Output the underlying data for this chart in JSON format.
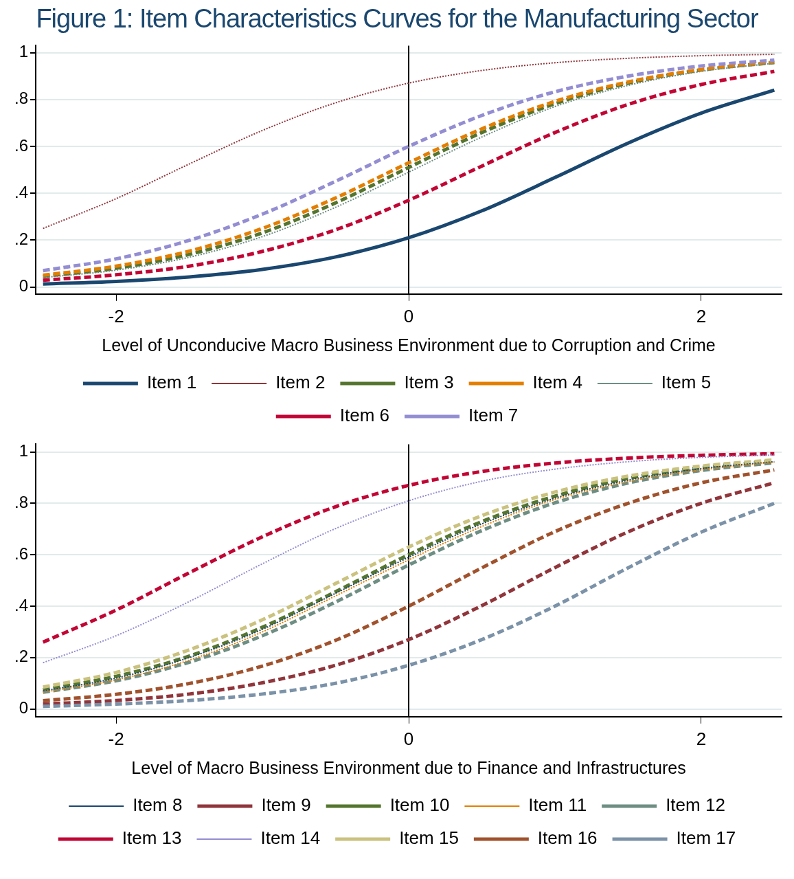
{
  "chart_data": [
    {
      "type": "line",
      "title": "Figure 1: Item Characteristics Curves  for the Manufacturing Sector",
      "xlabel": "Level of Unconducive Macro Business Environment due to Corruption and Crime",
      "x": [
        -2.5,
        -2,
        -1.5,
        -1,
        -0.5,
        0,
        0.5,
        1,
        1.5,
        2,
        2.5
      ],
      "xlim": [
        -2.55,
        2.55
      ],
      "xticks": [
        -2,
        0,
        2
      ],
      "ylim": [
        -0.03,
        1.03
      ],
      "yticks": [
        {
          "value": 0,
          "label": "0"
        },
        {
          "value": 0.2,
          "label": ".2"
        },
        {
          "value": 0.4,
          "label": ".4"
        },
        {
          "value": 0.6,
          "label": ".6"
        },
        {
          "value": 0.8,
          "label": ".8"
        },
        {
          "value": 1,
          "label": "1"
        }
      ],
      "grid": "y",
      "legend": "bottom",
      "marker": "none",
      "ref_lines": [
        {
          "axis": "x",
          "value": 0,
          "color": "#000000"
        }
      ],
      "series": [
        {
          "name": "Item 1",
          "color": "#1a476f",
          "line_style": "solid",
          "values": [
            0.013,
            0.024,
            0.043,
            0.075,
            0.128,
            0.21,
            0.325,
            0.467,
            0.614,
            0.742,
            0.84
          ]
        },
        {
          "name": "Item 2",
          "color": "#90353b",
          "line_style": "dotted",
          "values": [
            0.25,
            0.377,
            0.525,
            0.668,
            0.786,
            0.87,
            0.924,
            0.957,
            0.976,
            0.987,
            0.993
          ]
        },
        {
          "name": "Item 3",
          "color": "#55752f",
          "line_style": "dashed",
          "values": [
            0.045,
            0.08,
            0.139,
            0.231,
            0.359,
            0.51,
            0.659,
            0.782,
            0.87,
            0.926,
            0.958
          ]
        },
        {
          "name": "Item 4",
          "color": "#e37e00",
          "line_style": "dashed",
          "values": [
            0.05,
            0.089,
            0.153,
            0.25,
            0.38,
            0.53,
            0.675,
            0.792,
            0.875,
            0.928,
            0.96
          ]
        },
        {
          "name": "Item 5",
          "color": "#6e8e84",
          "line_style": "dotted",
          "values": [
            0.04,
            0.072,
            0.127,
            0.215,
            0.34,
            0.49,
            0.64,
            0.77,
            0.86,
            0.92,
            0.955
          ]
        },
        {
          "name": "Item 6",
          "color": "#c10534",
          "line_style": "dashed",
          "values": [
            0.029,
            0.052,
            0.089,
            0.152,
            0.244,
            0.37,
            0.516,
            0.659,
            0.779,
            0.864,
            0.92
          ]
        },
        {
          "name": "Item 7",
          "color": "#938dd2",
          "line_style": "dashed",
          "values": [
            0.07,
            0.12,
            0.199,
            0.311,
            0.451,
            0.6,
            0.732,
            0.833,
            0.9,
            0.943,
            0.968
          ]
        }
      ]
    },
    {
      "type": "line",
      "xlabel": "Level of Macro Business Environment due to Finance and Infrastructures",
      "x": [
        -2.5,
        -2,
        -1.5,
        -1,
        -0.5,
        0,
        0.5,
        1,
        1.5,
        2,
        2.5
      ],
      "xlim": [
        -2.55,
        2.55
      ],
      "xticks": [
        -2,
        0,
        2
      ],
      "ylim": [
        -0.03,
        1.03
      ],
      "yticks": [
        {
          "value": 0,
          "label": "0"
        },
        {
          "value": 0.2,
          "label": ".2"
        },
        {
          "value": 0.4,
          "label": ".4"
        },
        {
          "value": 0.6,
          "label": ".6"
        },
        {
          "value": 0.8,
          "label": ".8"
        },
        {
          "value": 1,
          "label": "1"
        }
      ],
      "grid": "y",
      "legend": "bottom",
      "marker": "none",
      "ref_lines": [
        {
          "axis": "x",
          "value": 0,
          "color": "#000000"
        }
      ],
      "series": [
        {
          "name": "Item 8",
          "color": "#1a476f",
          "line_style": "dotted",
          "values": [
            0.07,
            0.12,
            0.2,
            0.31,
            0.45,
            0.59,
            0.72,
            0.82,
            0.89,
            0.935,
            0.962
          ]
        },
        {
          "name": "Item 9",
          "color": "#90353b",
          "line_style": "dashed",
          "values": [
            0.019,
            0.033,
            0.058,
            0.102,
            0.17,
            0.27,
            0.402,
            0.55,
            0.689,
            0.8,
            0.88
          ]
        },
        {
          "name": "Item 10",
          "color": "#55752f",
          "line_style": "dashed",
          "values": [
            0.075,
            0.127,
            0.206,
            0.318,
            0.456,
            0.6,
            0.729,
            0.828,
            0.897,
            0.939,
            0.965
          ]
        },
        {
          "name": "Item 11",
          "color": "#e37e00",
          "line_style": "dotted",
          "values": [
            0.065,
            0.113,
            0.19,
            0.3,
            0.44,
            0.58,
            0.71,
            0.815,
            0.885,
            0.93,
            0.96
          ]
        },
        {
          "name": "Item 12",
          "color": "#6e8e84",
          "line_style": "dashed",
          "values": [
            0.065,
            0.11,
            0.182,
            0.285,
            0.416,
            0.56,
            0.694,
            0.802,
            0.879,
            0.928,
            0.958
          ]
        },
        {
          "name": "Item 13",
          "color": "#c10534",
          "line_style": "dashed",
          "values": [
            0.26,
            0.385,
            0.53,
            0.67,
            0.787,
            0.87,
            0.924,
            0.957,
            0.976,
            0.987,
            0.993
          ]
        },
        {
          "name": "Item 14",
          "color": "#938dd2",
          "line_style": "dotted",
          "values": [
            0.18,
            0.285,
            0.418,
            0.565,
            0.702,
            0.81,
            0.886,
            0.933,
            0.962,
            0.979,
            0.988
          ]
        },
        {
          "name": "Item 15",
          "color": "#cac27e",
          "line_style": "dashed",
          "values": [
            0.085,
            0.142,
            0.23,
            0.347,
            0.488,
            0.63,
            0.752,
            0.844,
            0.906,
            0.945,
            0.969
          ]
        },
        {
          "name": "Item 16",
          "color": "#a0522d",
          "line_style": "dashed",
          "values": [
            0.032,
            0.057,
            0.099,
            0.167,
            0.267,
            0.4,
            0.549,
            0.69,
            0.8,
            0.88,
            0.93
          ]
        },
        {
          "name": "Item 17",
          "color": "#7b92a8",
          "line_style": "dashed",
          "values": [
            0.01,
            0.019,
            0.033,
            0.058,
            0.1,
            0.17,
            0.27,
            0.4,
            0.549,
            0.688,
            0.8
          ]
        }
      ]
    }
  ]
}
